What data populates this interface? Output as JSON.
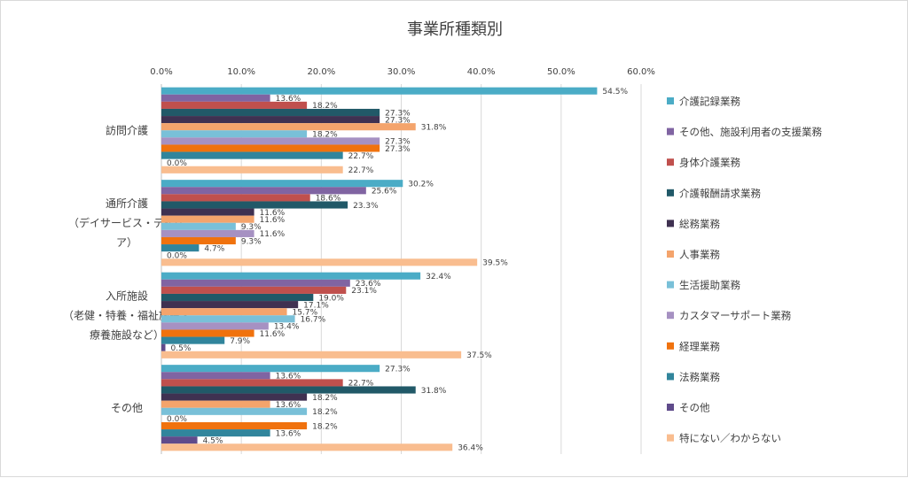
{
  "chart_data": {
    "type": "bar",
    "orientation": "horizontal",
    "title": "事業所種類別",
    "xlim": [
      0,
      60
    ],
    "xticks": [
      "0.0%",
      "10.0%",
      "20.0%",
      "30.0%",
      "40.0%",
      "50.0%",
      "60.0%"
    ],
    "grid": true,
    "legend_position": "right",
    "categories": [
      [
        "訪問介護"
      ],
      [
        "通所介護",
        "（デイサービス・デイケ",
        "ア）"
      ],
      [
        "入所施設",
        "（老健・特養・福祉施設・",
        "療養施設など）"
      ],
      [
        "その他"
      ]
    ],
    "series": [
      {
        "name": "介護記録業務",
        "color": "#4bacc6",
        "values": [
          54.5,
          30.2,
          32.4,
          27.3
        ],
        "labels": [
          "54.5%",
          "30.2%",
          "32.4%",
          "27.3%"
        ]
      },
      {
        "name": "その他、施設利用者の支援業務",
        "color": "#8064a2",
        "values": [
          13.6,
          25.6,
          23.6,
          13.6
        ],
        "labels": [
          "13.6%",
          "25.6%",
          "23.6%",
          "13.6%"
        ]
      },
      {
        "name": "身体介護業務",
        "color": "#c0504d",
        "values": [
          18.2,
          18.6,
          23.1,
          22.7
        ],
        "labels": [
          "18.2%",
          "18.6%",
          "23.1%",
          "22.7%"
        ]
      },
      {
        "name": "介護報酬請求業務",
        "color": "#215968",
        "values": [
          27.3,
          23.3,
          19.0,
          31.8
        ],
        "labels": [
          "27.3%",
          "23.3%",
          "19.0%",
          "31.8%"
        ]
      },
      {
        "name": "総務業務",
        "color": "#3f3151",
        "values": [
          27.3,
          11.6,
          17.1,
          18.2
        ],
        "labels": [
          "27.3%",
          "11.6%",
          "17.1%",
          "18.2%"
        ]
      },
      {
        "name": "人事業務",
        "color": "#f4a46c",
        "values": [
          31.8,
          11.6,
          15.7,
          13.6
        ],
        "labels": [
          "31.8%",
          "11.6%",
          "15.7%",
          "13.6%"
        ]
      },
      {
        "name": "生活援助業務",
        "color": "#79c0d8",
        "values": [
          18.2,
          9.3,
          16.7,
          18.2
        ],
        "labels": [
          "18.2%",
          "9.3%",
          "16.7%",
          "18.2%"
        ]
      },
      {
        "name": "カスタマーサポート業務",
        "color": "#a691c2",
        "values": [
          27.3,
          11.6,
          13.4,
          0.0
        ],
        "labels": [
          "27.3%",
          "11.6%",
          "13.4%",
          "0.0%"
        ]
      },
      {
        "name": "経理業務",
        "color": "#f0720e",
        "values": [
          27.3,
          9.3,
          11.6,
          18.2
        ],
        "labels": [
          "27.3%",
          "9.3%",
          "11.6%",
          "18.2%"
        ]
      },
      {
        "name": "法務業務",
        "color": "#31859c",
        "values": [
          22.7,
          4.7,
          7.9,
          13.6
        ],
        "labels": [
          "22.7%",
          "4.7%",
          "7.9%",
          "13.6%"
        ]
      },
      {
        "name": "その他",
        "color": "#5f4b8b",
        "values": [
          0.0,
          0.0,
          0.5,
          4.5
        ],
        "labels": [
          "0.0%",
          "0.0%",
          "0.5%",
          "4.5%"
        ]
      },
      {
        "name": "特にない／わからない",
        "color": "#f9bd8f",
        "values": [
          22.7,
          39.5,
          37.5,
          36.4
        ],
        "labels": [
          "22.7%",
          "39.5%",
          "37.5%",
          "36.4%"
        ]
      }
    ]
  }
}
